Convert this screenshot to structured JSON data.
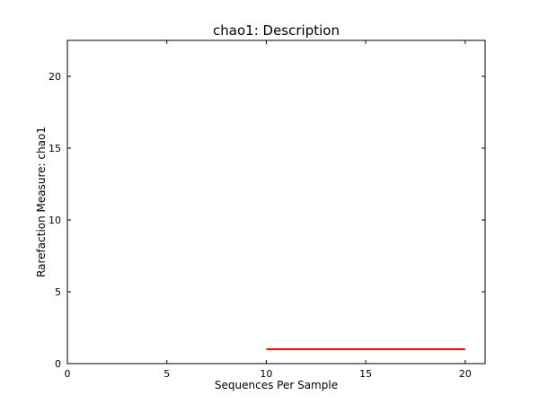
{
  "chart_data": {
    "type": "line",
    "title": "chao1: Description",
    "xlabel": "Sequences Per Sample",
    "ylabel": "Rarefaction Measure: chao1",
    "xlim": [
      0,
      21
    ],
    "ylim": [
      0,
      22.5
    ],
    "xticks": [
      0,
      5,
      10,
      15,
      20
    ],
    "yticks": [
      0,
      5,
      10,
      15,
      20
    ],
    "grid": false,
    "series": [
      {
        "color": "#ff0000",
        "x": [
          10,
          20
        ],
        "y": [
          1,
          1
        ]
      }
    ]
  }
}
